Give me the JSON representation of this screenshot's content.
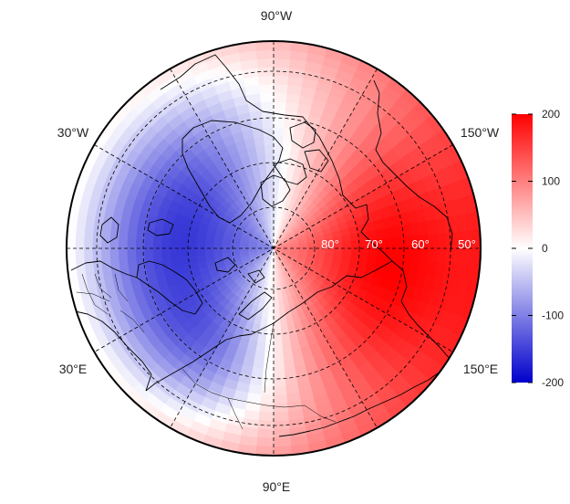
{
  "map": {
    "projection": "north-polar-stereographic",
    "field": "dipole anomaly: positive over Pacific/Alaska sector, negative over Atlantic/Eurasia",
    "colors": {
      "high": "#ff0000",
      "mid": "#ffffff",
      "low": "#0000cc",
      "coast": "#000000",
      "grid": "#000000"
    },
    "lon_labels": [
      {
        "id": "90w-top",
        "text": "90°W"
      },
      {
        "id": "30w",
        "text": "30°W"
      },
      {
        "id": "150w",
        "text": "150°W"
      },
      {
        "id": "30e",
        "text": "30°E"
      },
      {
        "id": "150e",
        "text": "150°E"
      },
      {
        "id": "90e-bottom",
        "text": "90°E"
      }
    ],
    "lat_labels": [
      {
        "id": "80",
        "text": "80°"
      },
      {
        "id": "70",
        "text": "70°"
      },
      {
        "id": "60",
        "text": "60°"
      },
      {
        "id": "50",
        "text": "50°"
      }
    ],
    "colorbar": {
      "min": -200,
      "max": 200,
      "ticks": [
        {
          "value": 200,
          "label": "200"
        },
        {
          "value": 100,
          "label": "100"
        },
        {
          "value": 0,
          "label": "0"
        },
        {
          "value": -100,
          "label": "-100"
        },
        {
          "value": -200,
          "label": "-200"
        }
      ]
    }
  }
}
